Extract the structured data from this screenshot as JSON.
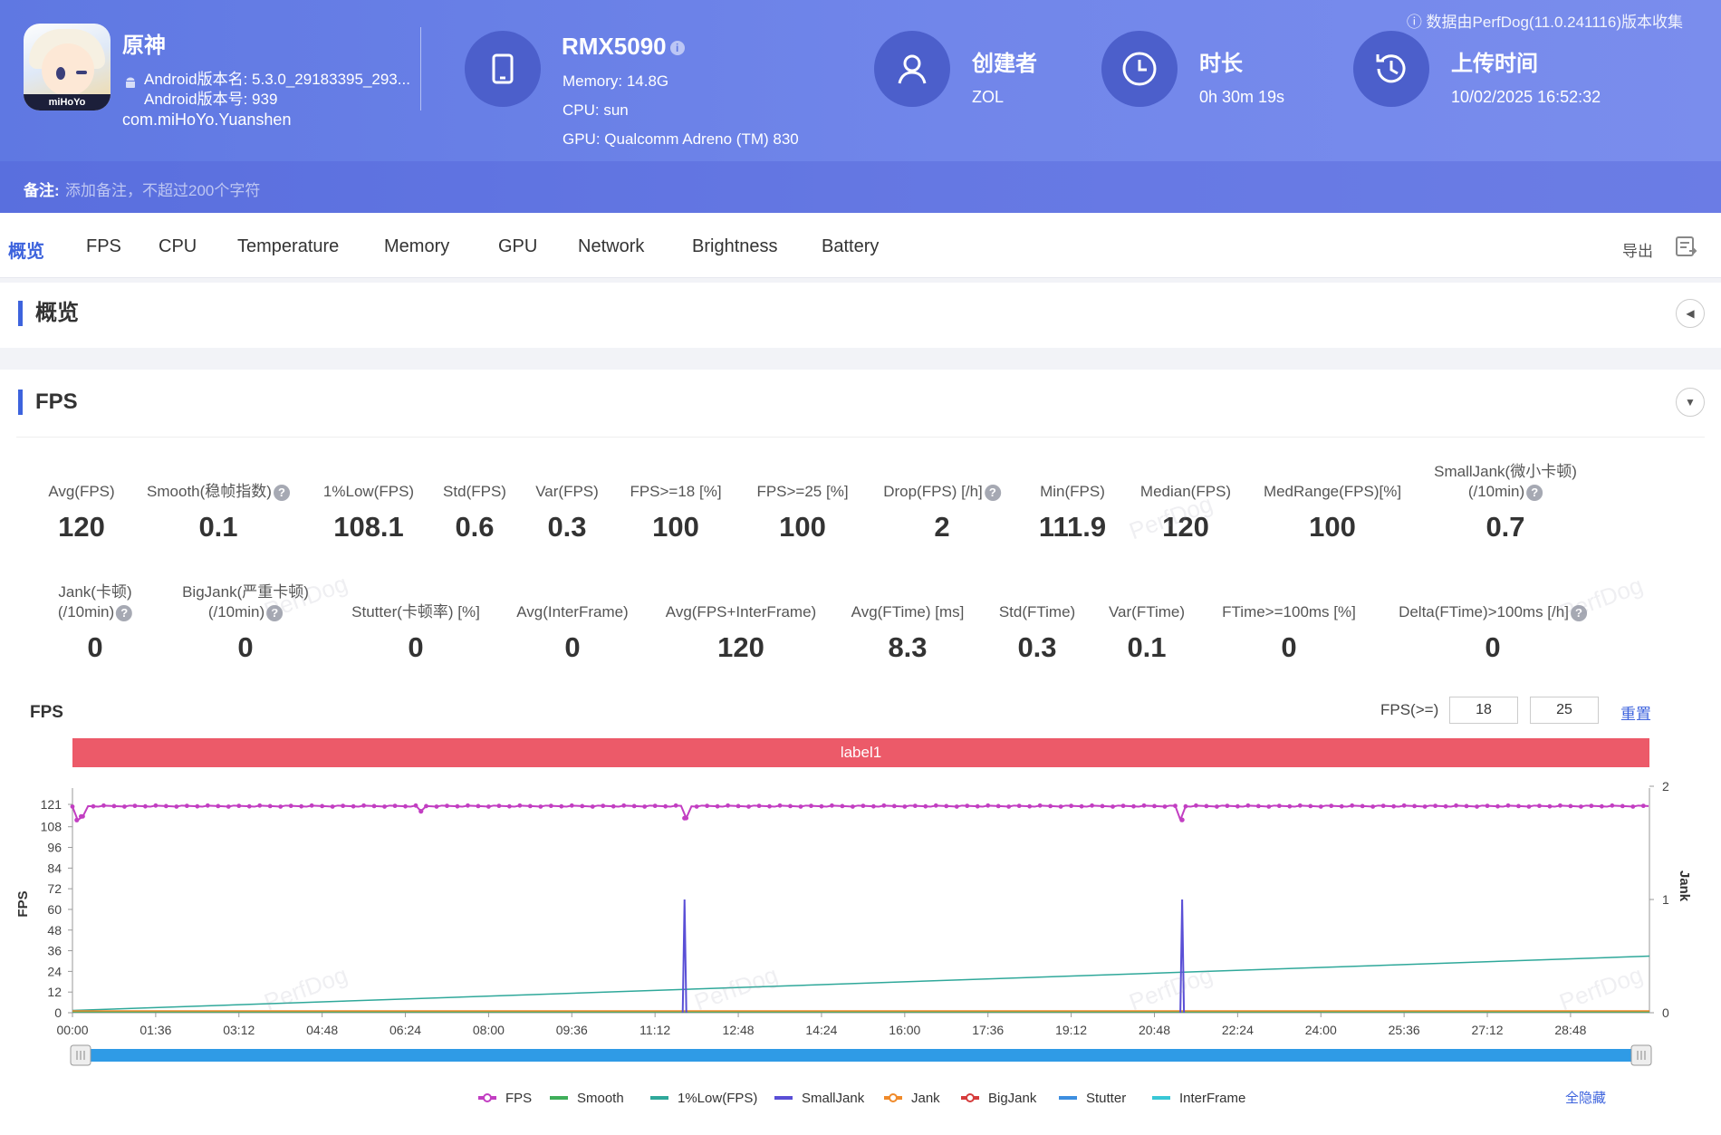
{
  "header": {
    "top_note": "数据由PerfDog(11.0.241116)版本收集",
    "app": {
      "name": "原神",
      "version_name": "Android版本名: 5.3.0_29183395_293...",
      "version_code": "Android版本号: 939",
      "package": "com.miHoYo.Yuanshen",
      "icon_text": "miHoYo"
    },
    "device": {
      "name": "RMX5090",
      "info_glyph": "i",
      "memory": "Memory: 14.8G",
      "cpu": "CPU: sun",
      "gpu": "GPU: Qualcomm Adreno (TM) 830"
    },
    "creator": {
      "title": "创建者",
      "value": "ZOL"
    },
    "duration": {
      "title": "时长",
      "value": "0h 30m 19s"
    },
    "upload": {
      "title": "上传时间",
      "value": "10/02/2025 16:52:32"
    },
    "remark_label": "备注:",
    "remark_placeholder": "添加备注，不超过200个字符"
  },
  "tabs": [
    "概览",
    "FPS",
    "CPU",
    "Temperature",
    "Memory",
    "GPU",
    "Network",
    "Brightness",
    "Battery"
  ],
  "export_label": "导出",
  "overview_title": "概览",
  "fps_section_title": "FPS",
  "metrics_row1": [
    {
      "label": "Avg(FPS)",
      "value": "120"
    },
    {
      "label": "Smooth(稳帧指数)",
      "value": "0.1",
      "help": true
    },
    {
      "label": "1%Low(FPS)",
      "value": "108.1"
    },
    {
      "label": "Std(FPS)",
      "value": "0.6"
    },
    {
      "label": "Var(FPS)",
      "value": "0.3"
    },
    {
      "label": "FPS>=18 [%]",
      "value": "100"
    },
    {
      "label": "FPS>=25 [%]",
      "value": "100"
    },
    {
      "label": "Drop(FPS) [/h]",
      "value": "2",
      "help": true
    },
    {
      "label": "Min(FPS)",
      "value": "111.9"
    },
    {
      "label": "Median(FPS)",
      "value": "120"
    },
    {
      "label": "MedRange(FPS)[%]",
      "value": "100"
    },
    {
      "label": "SmallJank(微小卡顿)",
      "label2": "(/10min)",
      "value": "0.7",
      "help": true
    }
  ],
  "metrics_row2": [
    {
      "label": "Jank(卡顿)",
      "label2": "(/10min)",
      "value": "0",
      "help": true
    },
    {
      "label": "BigJank(严重卡顿)",
      "label2": "(/10min)",
      "value": "0",
      "help": true
    },
    {
      "label": "Stutter(卡顿率) [%]",
      "value": "0"
    },
    {
      "label": "Avg(InterFrame)",
      "value": "0"
    },
    {
      "label": "Avg(FPS+InterFrame)",
      "value": "120"
    },
    {
      "label": "Avg(FTime) [ms]",
      "value": "8.3"
    },
    {
      "label": "Std(FTime)",
      "value": "0.3"
    },
    {
      "label": "Var(FTime)",
      "value": "0.1"
    },
    {
      "label": "FTime>=100ms [%]",
      "value": "0"
    },
    {
      "label": "Delta(FTime)>100ms [/h]",
      "value": "0",
      "help": true
    }
  ],
  "help_glyph": "?",
  "chart_panel": {
    "title": "FPS",
    "threshold_label": "FPS(>=)",
    "threshold1": "18",
    "threshold2": "25",
    "reset_label": "重置",
    "band_label": "label1",
    "hide_all_label": "全隐藏",
    "watermark": "PerfDog"
  },
  "chart_data": {
    "type": "line",
    "xlabel": "",
    "ylabel": "FPS",
    "y2label": "Jank",
    "ylim": [
      0,
      121
    ],
    "y2lim": [
      0,
      2
    ],
    "yticks": [
      0,
      12,
      24,
      36,
      48,
      60,
      72,
      84,
      96,
      108,
      121
    ],
    "y2ticks": [
      0,
      1,
      2
    ],
    "x_ticks": [
      "00:00",
      "01:36",
      "03:12",
      "04:48",
      "06:24",
      "08:00",
      "09:36",
      "11:12",
      "12:48",
      "14:24",
      "16:00",
      "17:36",
      "19:12",
      "20:48",
      "22:24",
      "24:00",
      "25:36",
      "27:12",
      "28:48"
    ],
    "x_max_seconds": 1819,
    "legend": [
      {
        "name": "FPS",
        "color": "#c23ec2"
      },
      {
        "name": "Smooth",
        "color": "#3fae5a"
      },
      {
        "name": "1%Low(FPS)",
        "color": "#2fa89a"
      },
      {
        "name": "SmallJank",
        "color": "#5a4fd6"
      },
      {
        "name": "Jank",
        "color": "#f08a2a"
      },
      {
        "name": "BigJank",
        "color": "#d63c3c"
      },
      {
        "name": "Stutter",
        "color": "#3d8ee0"
      },
      {
        "name": "InterFrame",
        "color": "#39c7d6"
      }
    ],
    "series": [
      {
        "name": "FPS",
        "axis": "left",
        "typical": 120,
        "dips": [
          {
            "t": 5,
            "v": 111.9
          },
          {
            "t": 10,
            "v": 114
          },
          {
            "t": 402,
            "v": 117
          },
          {
            "t": 706,
            "v": 113
          },
          {
            "t": 1280,
            "v": 112
          }
        ]
      },
      {
        "name": "Smooth",
        "axis": "left",
        "points": [
          [
            0,
            0.3
          ],
          [
            1819,
            0.3
          ]
        ]
      },
      {
        "name": "1%Low(FPS)",
        "axis": "right",
        "points": [
          [
            0,
            0.02
          ],
          [
            1819,
            0.5
          ]
        ]
      },
      {
        "name": "SmallJank",
        "axis": "right",
        "spikes": [
          {
            "t": 706,
            "v": 1
          },
          {
            "t": 1280,
            "v": 1
          }
        ]
      },
      {
        "name": "Jank",
        "axis": "right",
        "points": [
          [
            0,
            0.01
          ],
          [
            1819,
            0.01
          ]
        ]
      }
    ]
  }
}
